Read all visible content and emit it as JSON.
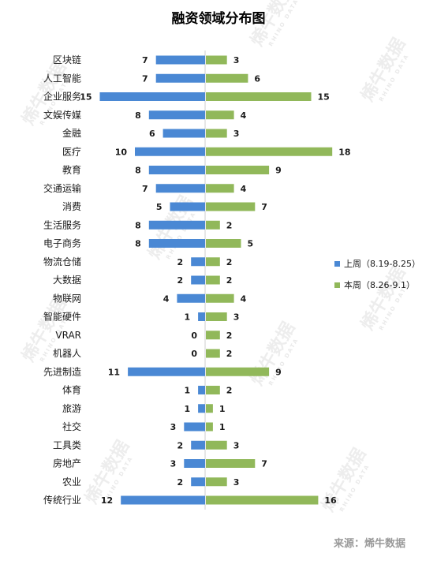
{
  "chart_data": {
    "type": "bar",
    "title": "融资领域分布图",
    "categories": [
      "区块链",
      "人工智能",
      "企业服务",
      "文娱传媒",
      "金融",
      "医疗",
      "教育",
      "交通运输",
      "消费",
      "生活服务",
      "电子商务",
      "物流仓储",
      "大数据",
      "物联网",
      "智能硬件",
      "VRAR",
      "机器人",
      "先进制造",
      "体育",
      "旅游",
      "社交",
      "工具类",
      "房地产",
      "农业",
      "传统行业"
    ],
    "series": [
      {
        "name": "上周（8.19-8.25）",
        "color": "#4a88d4",
        "direction": "left",
        "values": [
          7,
          7,
          15,
          8,
          6,
          10,
          8,
          7,
          5,
          8,
          8,
          2,
          2,
          4,
          1,
          0,
          0,
          11,
          1,
          1,
          3,
          2,
          3,
          2,
          12
        ]
      },
      {
        "name": "本周（8.26-9.1）",
        "color": "#91b85a",
        "direction": "right",
        "values": [
          3,
          6,
          15,
          4,
          3,
          18,
          9,
          4,
          7,
          2,
          5,
          2,
          2,
          4,
          3,
          2,
          2,
          9,
          2,
          1,
          1,
          3,
          7,
          3,
          16
        ]
      }
    ],
    "legend_position": "right",
    "grid": false
  },
  "source_text": "来源：烯牛数据",
  "watermark": {
    "text": "烯牛数据",
    "sub": "RHINO DATA"
  }
}
